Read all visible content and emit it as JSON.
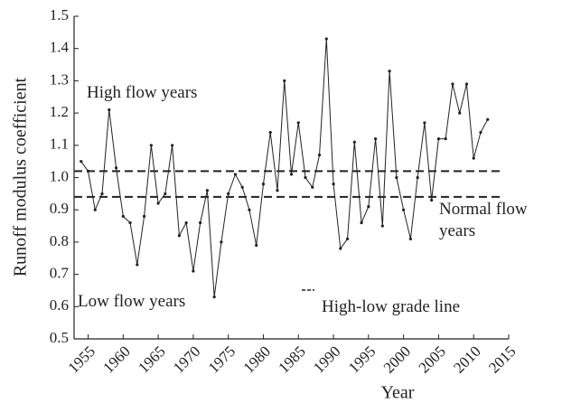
{
  "chart_data": {
    "type": "line",
    "x_label": "Year",
    "y_label": "Runoff modulus coefficient",
    "x": [
      1954,
      1955,
      1956,
      1957,
      1958,
      1959,
      1960,
      1961,
      1962,
      1963,
      1964,
      1965,
      1966,
      1967,
      1968,
      1969,
      1970,
      1971,
      1972,
      1973,
      1974,
      1975,
      1976,
      1977,
      1978,
      1979,
      1980,
      1981,
      1982,
      1983,
      1984,
      1985,
      1986,
      1987,
      1988,
      1989,
      1990,
      1991,
      1992,
      1993,
      1994,
      1995,
      1996,
      1997,
      1998,
      1999,
      2000,
      2001,
      2002,
      2003,
      2004,
      2005,
      2006,
      2007,
      2008,
      2009,
      2010,
      2011,
      2012
    ],
    "values": [
      1.05,
      1.02,
      0.9,
      0.95,
      1.21,
      1.03,
      0.88,
      0.86,
      0.73,
      0.88,
      1.1,
      0.92,
      0.95,
      1.1,
      0.82,
      0.86,
      0.71,
      0.86,
      0.96,
      0.63,
      0.8,
      0.95,
      1.01,
      0.97,
      0.9,
      0.79,
      0.98,
      1.14,
      0.96,
      1.3,
      1.01,
      1.17,
      1.0,
      0.97,
      1.07,
      1.43,
      0.98,
      0.78,
      0.81,
      1.11,
      0.86,
      0.91,
      1.12,
      0.85,
      1.33,
      1.0,
      0.9,
      0.81,
      1.0,
      1.17,
      0.93,
      1.12,
      1.12,
      1.29,
      1.2,
      1.29,
      1.06,
      1.14,
      1.18
    ],
    "color": "#222222",
    "reference_lines": [
      1.02,
      0.94
    ],
    "xlim": [
      1953,
      2015
    ],
    "xticks": [
      1955,
      1960,
      1965,
      1970,
      1975,
      1980,
      1985,
      1990,
      1995,
      2000,
      2005,
      2010,
      2015
    ],
    "ylim": [
      0.5,
      1.5
    ],
    "yticks": [
      0.5,
      0.6,
      0.7,
      0.8,
      0.9,
      {
        "value": 1,
        "label": "1.0"
      },
      1.1,
      1.2,
      1.3,
      1.4,
      1.5
    ],
    "annotations": [
      "High flow years",
      "Normal flow years",
      "Low flow years",
      "High-low grade line"
    ]
  }
}
